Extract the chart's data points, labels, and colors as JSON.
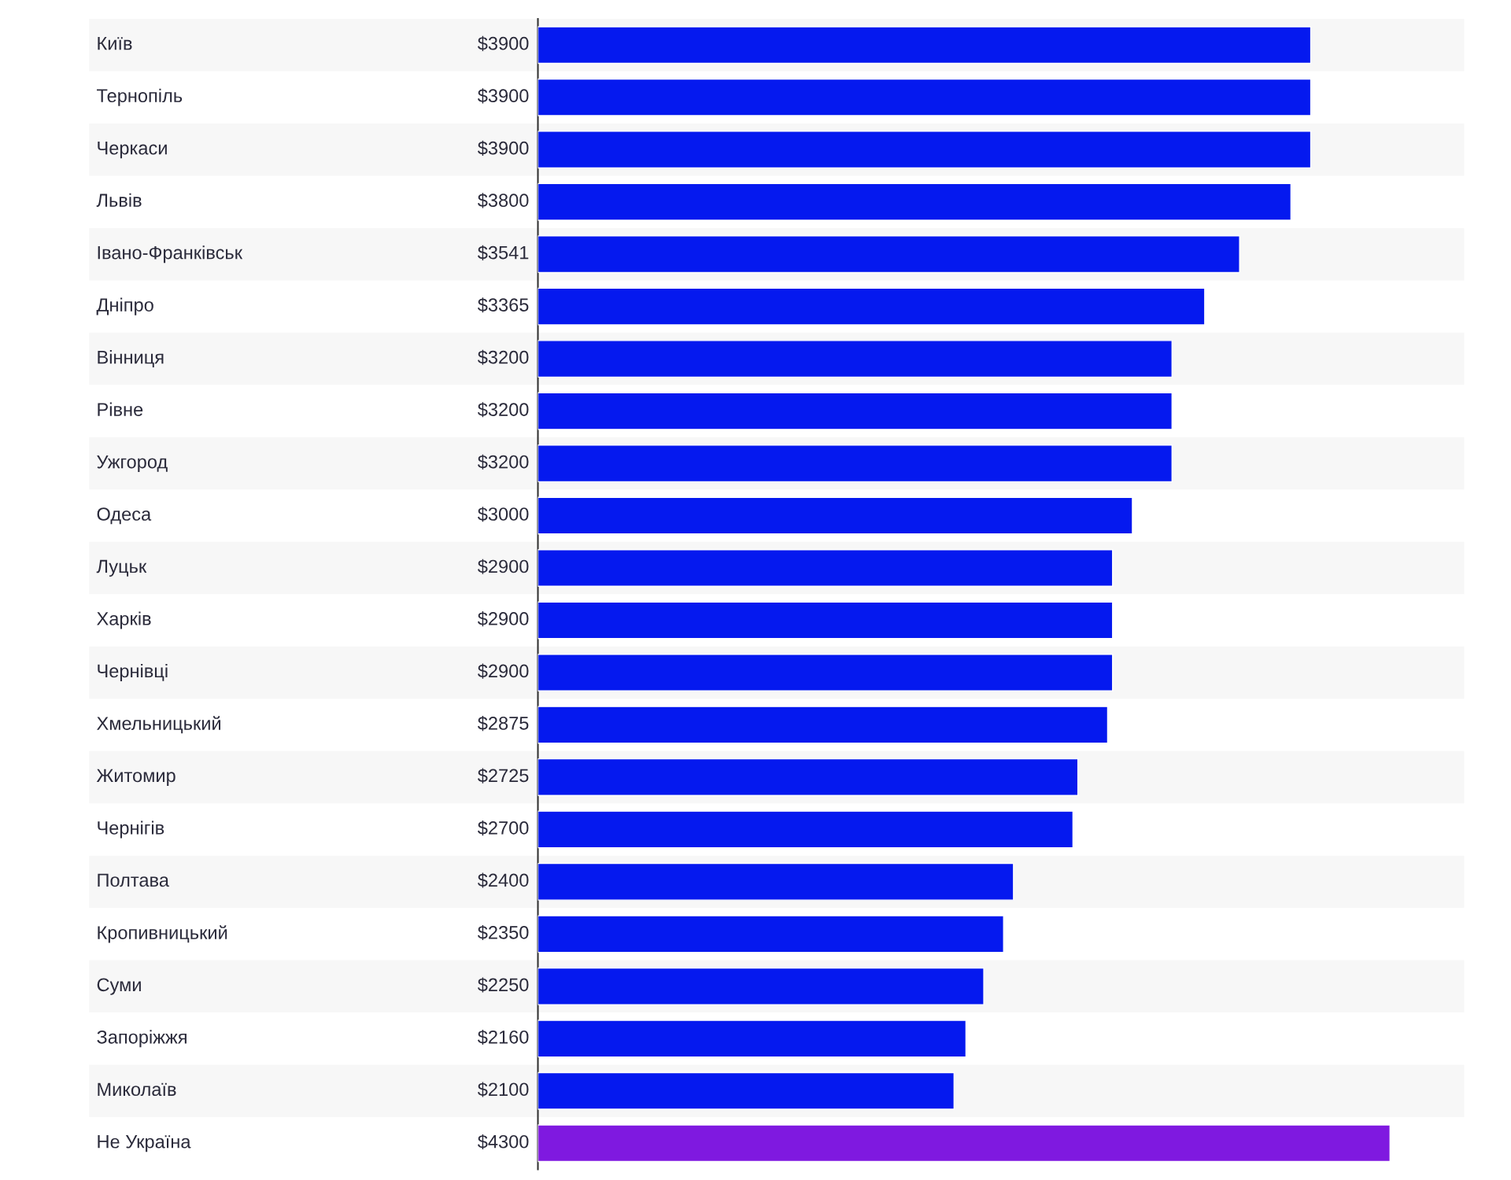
{
  "chart_data": {
    "type": "bar",
    "orientation": "horizontal",
    "categories": [
      "Київ",
      "Тернопіль",
      "Черкаси",
      "Львів",
      "Івано-Франківськ",
      "Дніпро",
      "Вінниця",
      "Рівне",
      "Ужгород",
      "Одеса",
      "Луцьк",
      "Харків",
      "Чернівці",
      "Хмельницький",
      "Житомир",
      "Чернігів",
      "Полтава",
      "Кропивницький",
      "Суми",
      "Запоріжжя",
      "Миколаїв",
      "Не Україна"
    ],
    "values": [
      3900,
      3900,
      3900,
      3800,
      3541,
      3365,
      3200,
      3200,
      3200,
      3000,
      2900,
      2900,
      2900,
      2875,
      2725,
      2700,
      2400,
      2350,
      2250,
      2160,
      2100,
      4300
    ],
    "value_labels": [
      "$3900",
      "$3900",
      "$3900",
      "$3800",
      "$3541",
      "$3365",
      "$3200",
      "$3200",
      "$3200",
      "$3000",
      "$2900",
      "$2900",
      "$2900",
      "$2875",
      "$2725",
      "$2700",
      "$2400",
      "$2350",
      "$2250",
      "$2160",
      "$2100",
      "$4300"
    ],
    "colors": [
      "#0519ef",
      "#0519ef",
      "#0519ef",
      "#0519ef",
      "#0519ef",
      "#0519ef",
      "#0519ef",
      "#0519ef",
      "#0519ef",
      "#0519ef",
      "#0519ef",
      "#0519ef",
      "#0519ef",
      "#0519ef",
      "#0519ef",
      "#0519ef",
      "#0519ef",
      "#0519ef",
      "#0519ef",
      "#0519ef",
      "#0519ef",
      "#7f19e0"
    ],
    "legend": false
  }
}
